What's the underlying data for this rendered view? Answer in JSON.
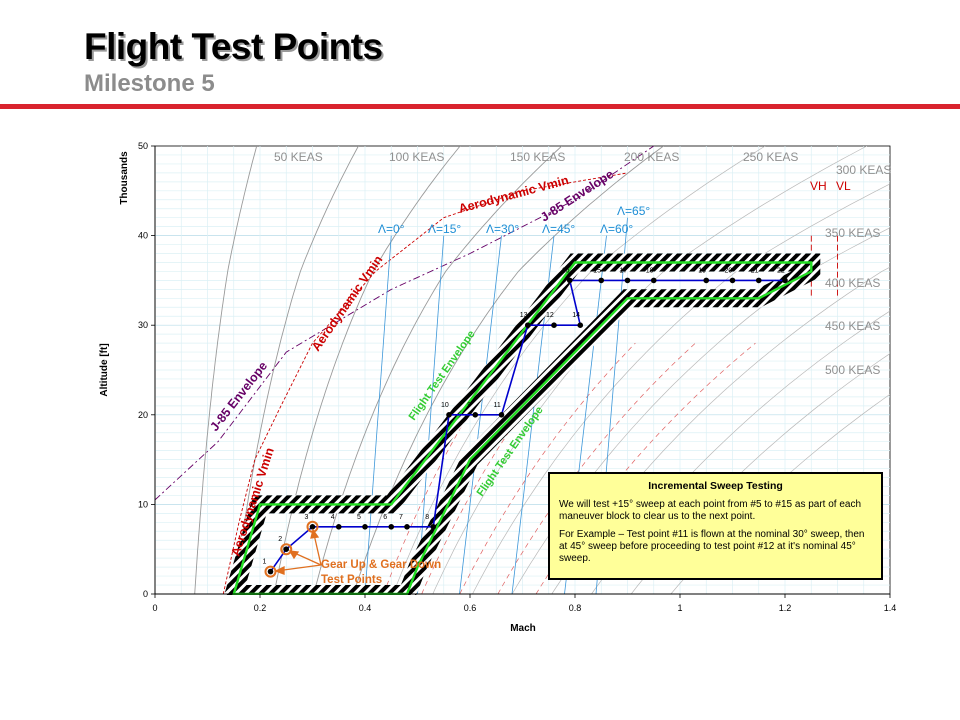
{
  "page": {
    "title": "Flight Test Points",
    "subtitle": "Milestone 5"
  },
  "colors": {
    "rule": "#d9232e",
    "envelope": "#00cc00",
    "path": "#0000cc",
    "lambda": "#1f8fd6",
    "vmin": "#cc0000",
    "j85": "#660066",
    "keas": "#909090",
    "gear": "#e07020",
    "note_bg": "#ffff99"
  },
  "chart_data": {
    "type": "line",
    "xlabel": "Mach",
    "ylabel": "Altitude [ft]",
    "y_units": "Thousands",
    "xlim": [
      0,
      1.4
    ],
    "ylim": [
      0,
      50
    ],
    "x_ticks": [
      "0",
      "0.2",
      "0.4",
      "0.6",
      "0.8",
      "1",
      "1.2",
      "1.4"
    ],
    "y_ticks": [
      "0",
      "10",
      "20",
      "30",
      "40",
      "50"
    ],
    "grid": true,
    "series": [
      {
        "role": "test-point-path",
        "x": [
          0.22,
          0.25,
          0.3,
          0.35,
          0.4,
          0.45,
          0.48,
          0.53,
          0.56,
          0.61,
          0.66,
          0.71,
          0.76,
          0.79,
          0.81,
          0.85,
          0.9,
          0.95,
          1.05,
          1.1,
          1.15,
          1.2
        ],
        "y": [
          2.5,
          5,
          7.5,
          7.5,
          7.5,
          7.5,
          7.5,
          7.5,
          20,
          20,
          20,
          30,
          30,
          35,
          30,
          35,
          35,
          35,
          35,
          35,
          35,
          35
        ]
      },
      {
        "role": "flight-test-envelope",
        "x": [
          0.15,
          0.2,
          0.45,
          0.8,
          1.25,
          1.25,
          1.15,
          0.9,
          0.6,
          0.5,
          0.48,
          0.15
        ],
        "y": [
          0,
          10,
          10,
          37,
          37,
          36,
          33,
          33,
          15,
          3,
          0,
          0
        ]
      }
    ],
    "test_points": [
      {
        "label": "1",
        "x": 0.22,
        "y": 2.5,
        "gear": true
      },
      {
        "label": "2",
        "x": 0.25,
        "y": 5.0,
        "gear": true
      },
      {
        "label": "3",
        "x": 0.3,
        "y": 7.5,
        "gear": true
      },
      {
        "label": "4",
        "x": 0.35,
        "y": 7.5
      },
      {
        "label": "5",
        "x": 0.4,
        "y": 7.5
      },
      {
        "label": "6",
        "x": 0.45,
        "y": 7.5
      },
      {
        "label": "7",
        "x": 0.48,
        "y": 7.5
      },
      {
        "label": "8",
        "x": 0.53,
        "y": 7.5
      },
      {
        "label": "10",
        "x": 0.56,
        "y": 20
      },
      {
        "label": "9",
        "x": 0.61,
        "y": 20
      },
      {
        "label": "11",
        "x": 0.66,
        "y": 20
      },
      {
        "label": "13",
        "x": 0.71,
        "y": 30
      },
      {
        "label": "12",
        "x": 0.76,
        "y": 30
      },
      {
        "label": "16",
        "x": 0.79,
        "y": 35
      },
      {
        "label": "14",
        "x": 0.81,
        "y": 30
      },
      {
        "label": "15",
        "x": 0.85,
        "y": 35
      },
      {
        "label": "17",
        "x": 0.9,
        "y": 35
      },
      {
        "label": "18",
        "x": 0.95,
        "y": 35
      },
      {
        "label": "19",
        "x": 1.05,
        "y": 35
      },
      {
        "label": "20",
        "x": 1.1,
        "y": 35
      },
      {
        "label": "21",
        "x": 1.15,
        "y": 35
      },
      {
        "label": "22",
        "x": 1.2,
        "y": 35
      }
    ],
    "keas_labels": [
      "50 KEAS",
      "100 KEAS",
      "150 KEAS",
      "200 KEAS",
      "250 KEAS",
      "300 KEAS",
      "350 KEAS",
      "400 KEAS",
      "450 KEAS",
      "500 KEAS"
    ],
    "lambda_labels": [
      "Λ=0°",
      "Λ=15°",
      "Λ=30°",
      "Λ=45°",
      "Λ=60°",
      "Λ=65°"
    ],
    "vh_label": "VH",
    "vl_label": "VL",
    "annotations": {
      "aero_vmin": "Aerodynamic Vmin",
      "j85": "J-85 Envelope",
      "flight_test_envelope": "Flight Test Envelope",
      "gear": [
        "Gear Up & Gear Down",
        "Test Points"
      ]
    }
  },
  "note": {
    "title": "Incremental Sweep Testing",
    "p1": "We will test +15° sweep at each point from #5 to #15 as part of each maneuver block to clear us to the next point.",
    "p2": "For Example – Test point #11 is flown at the nominal 30° sweep, then at 45° sweep before proceeding to test point #12 at it's nominal 45° sweep."
  }
}
